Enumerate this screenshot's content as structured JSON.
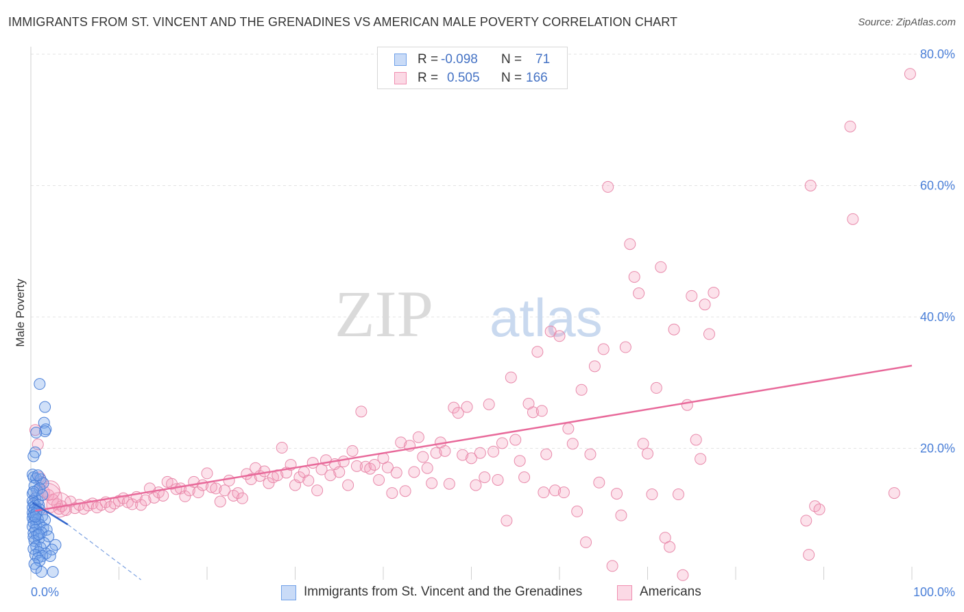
{
  "header": {
    "title": "IMMIGRANTS FROM ST. VINCENT AND THE GRENADINES VS AMERICAN MALE POVERTY CORRELATION CHART",
    "source": "Source: ZipAtlas.com"
  },
  "watermark": {
    "zip": "ZIP",
    "atlas": "atlas"
  },
  "legend_top": {
    "rows": [
      {
        "r_label": "R =",
        "r_value": "-0.098",
        "n_label": "N =",
        "n_value": "71",
        "color": "#6fa0e8"
      },
      {
        "r_label": "R =",
        "r_value": "0.505",
        "n_label": "N =",
        "n_value": "166",
        "color": "#f08db0"
      }
    ]
  },
  "legend_bottom": {
    "items": [
      {
        "label": "Immigrants from St. Vincent and the Grenadines",
        "color": "#6fa0e8"
      },
      {
        "label": "Americans",
        "color": "#f08db0"
      }
    ]
  },
  "colors": {
    "blue_fill": "rgba(120,165,235,0.35)",
    "blue_stroke": "#4a7fd8",
    "pink_fill": "rgba(245,160,190,0.30)",
    "pink_stroke": "#e889aa",
    "pink_line": "#e8699a",
    "blue_line": "#3366cc",
    "tick_label": "#4a7fd8"
  },
  "chart_data": {
    "type": "scatter",
    "title": "IMMIGRANTS FROM ST. VINCENT AND THE GRENADINES VS AMERICAN MALE POVERTY CORRELATION CHART",
    "xlabel": "",
    "ylabel": "Male Poverty",
    "xlim": [
      0,
      100
    ],
    "ylim": [
      0,
      80
    ],
    "x_tick_labels": [
      "0.0%",
      "100.0%"
    ],
    "y_ticks": [
      20,
      40,
      60,
      80
    ],
    "y_tick_labels": [
      "20.0%",
      "40.0%",
      "60.0%",
      "80.0%"
    ],
    "grid": true,
    "legend_placement": "top-center",
    "series": [
      {
        "name": "Immigrants from St. Vincent and the Grenadines",
        "r": -0.098,
        "n": 71,
        "trend": {
          "x": [
            0.2,
            4.2
          ],
          "y": [
            11.7,
            8.4
          ]
        },
        "trend_dashed": {
          "x": [
            4.2,
            12.5
          ],
          "y": [
            8.4,
            0
          ]
        },
        "points": [
          [
            1.0,
            29.8
          ],
          [
            1.6,
            26.3
          ],
          [
            1.5,
            23.9
          ],
          [
            1.7,
            22.9
          ],
          [
            1.6,
            22.6
          ],
          [
            0.6,
            22.4
          ],
          [
            0.5,
            19.4
          ],
          [
            0.3,
            18.8
          ],
          [
            0.2,
            16.0
          ],
          [
            0.3,
            15.6
          ],
          [
            0.6,
            15.4
          ],
          [
            1.1,
            15.3
          ],
          [
            1.4,
            14.7
          ],
          [
            0.4,
            14.3
          ],
          [
            0.7,
            13.6
          ],
          [
            1.0,
            13.9
          ],
          [
            0.2,
            13.1
          ],
          [
            0.5,
            12.4
          ],
          [
            0.8,
            12.0
          ],
          [
            0.2,
            12.0
          ],
          [
            0.3,
            11.6
          ],
          [
            0.5,
            11.3
          ],
          [
            0.9,
            11.4
          ],
          [
            0.2,
            11.0
          ],
          [
            0.4,
            10.7
          ],
          [
            0.7,
            10.6
          ],
          [
            1.0,
            10.7
          ],
          [
            0.2,
            10.2
          ],
          [
            0.3,
            9.8
          ],
          [
            0.6,
            10.1
          ],
          [
            1.3,
            9.7
          ],
          [
            0.2,
            9.4
          ],
          [
            0.5,
            9.1
          ],
          [
            0.8,
            9.2
          ],
          [
            1.6,
            9.1
          ],
          [
            0.3,
            8.7
          ],
          [
            0.6,
            8.4
          ],
          [
            1.0,
            8.4
          ],
          [
            0.2,
            8.1
          ],
          [
            1.4,
            7.9
          ],
          [
            0.5,
            7.6
          ],
          [
            1.8,
            7.6
          ],
          [
            0.3,
            7.1
          ],
          [
            1.2,
            7.2
          ],
          [
            0.7,
            6.8
          ],
          [
            0.3,
            6.5
          ],
          [
            0.9,
            6.2
          ],
          [
            2.0,
            6.6
          ],
          [
            0.4,
            5.9
          ],
          [
            1.5,
            5.6
          ],
          [
            2.8,
            5.3
          ],
          [
            0.6,
            5.1
          ],
          [
            1.1,
            4.9
          ],
          [
            0.3,
            4.7
          ],
          [
            2.4,
            4.6
          ],
          [
            0.9,
            4.2
          ],
          [
            1.7,
            4.0
          ],
          [
            0.5,
            3.8
          ],
          [
            1.3,
            3.6
          ],
          [
            0.8,
            3.3
          ],
          [
            2.2,
            3.6
          ],
          [
            1.0,
            2.9
          ],
          [
            0.4,
            2.4
          ],
          [
            0.6,
            1.8
          ],
          [
            1.2,
            1.2
          ],
          [
            2.5,
            1.2
          ],
          [
            0.3,
            13.4
          ],
          [
            0.8,
            15.9
          ],
          [
            1.3,
            12.9
          ],
          [
            0.5,
            9.6
          ],
          [
            0.9,
            6.9
          ]
        ]
      },
      {
        "name": "Americans",
        "r": 0.505,
        "n": 166,
        "trend": {
          "x": [
            0.5,
            100
          ],
          "y": [
            10.5,
            32.6
          ]
        },
        "points": [
          [
            0.5,
            22.8
          ],
          [
            0.8,
            20.6
          ],
          [
            1.0,
            15.6
          ],
          [
            1.2,
            14.9
          ],
          [
            1.5,
            13.4
          ],
          [
            2.0,
            12.9
          ],
          [
            2.5,
            12.2
          ],
          [
            3.0,
            11.5
          ],
          [
            3.2,
            10.8
          ],
          [
            3.5,
            11.2
          ],
          [
            4.0,
            10.6
          ],
          [
            4.5,
            11.9
          ],
          [
            5.0,
            10.9
          ],
          [
            5.5,
            11.4
          ],
          [
            6.0,
            10.8
          ],
          [
            6.5,
            11.3
          ],
          [
            7.0,
            11.6
          ],
          [
            7.5,
            11.0
          ],
          [
            8.0,
            11.4
          ],
          [
            8.5,
            11.8
          ],
          [
            9.0,
            11.1
          ],
          [
            9.5,
            11.6
          ],
          [
            10.0,
            12.0
          ],
          [
            10.5,
            12.4
          ],
          [
            11.0,
            11.8
          ],
          [
            11.5,
            11.5
          ],
          [
            12.0,
            12.6
          ],
          [
            12.5,
            11.4
          ],
          [
            13.0,
            12.1
          ],
          [
            13.5,
            13.9
          ],
          [
            14.0,
            12.5
          ],
          [
            14.5,
            13.3
          ],
          [
            15.0,
            12.8
          ],
          [
            15.5,
            14.9
          ],
          [
            16.0,
            14.6
          ],
          [
            16.5,
            13.8
          ],
          [
            17.0,
            13.9
          ],
          [
            17.5,
            12.7
          ],
          [
            18.0,
            13.6
          ],
          [
            18.5,
            14.9
          ],
          [
            19.0,
            13.3
          ],
          [
            19.5,
            14.4
          ],
          [
            20.0,
            16.2
          ],
          [
            20.5,
            14.1
          ],
          [
            21.0,
            13.9
          ],
          [
            21.5,
            11.9
          ],
          [
            22.0,
            13.6
          ],
          [
            22.5,
            15.1
          ],
          [
            23.0,
            12.8
          ],
          [
            23.5,
            13.2
          ],
          [
            24.0,
            12.4
          ],
          [
            24.5,
            16.1
          ],
          [
            25.0,
            15.3
          ],
          [
            25.5,
            17.0
          ],
          [
            26.0,
            15.8
          ],
          [
            26.5,
            16.5
          ],
          [
            27.0,
            14.7
          ],
          [
            27.5,
            15.6
          ],
          [
            28.0,
            15.9
          ],
          [
            28.5,
            20.1
          ],
          [
            29.0,
            16.3
          ],
          [
            29.5,
            17.5
          ],
          [
            30.0,
            14.4
          ],
          [
            30.5,
            15.6
          ],
          [
            31.0,
            16.4
          ],
          [
            31.5,
            15.1
          ],
          [
            32.0,
            17.8
          ],
          [
            32.5,
            13.6
          ],
          [
            33.0,
            16.8
          ],
          [
            33.5,
            18.2
          ],
          [
            34.0,
            15.9
          ],
          [
            34.5,
            17.6
          ],
          [
            35.0,
            16.4
          ],
          [
            35.5,
            18.0
          ],
          [
            36.0,
            14.4
          ],
          [
            36.5,
            19.6
          ],
          [
            37.0,
            17.3
          ],
          [
            37.5,
            25.6
          ],
          [
            38.0,
            17.2
          ],
          [
            38.5,
            16.9
          ],
          [
            39.0,
            17.5
          ],
          [
            39.5,
            15.2
          ],
          [
            40.0,
            18.5
          ],
          [
            40.5,
            17.1
          ],
          [
            41.0,
            13.2
          ],
          [
            41.5,
            16.3
          ],
          [
            42.0,
            20.9
          ],
          [
            42.5,
            13.5
          ],
          [
            43.0,
            20.4
          ],
          [
            43.5,
            16.4
          ],
          [
            44.0,
            21.7
          ],
          [
            44.5,
            18.7
          ],
          [
            45.0,
            17.0
          ],
          [
            45.5,
            14.7
          ],
          [
            46.0,
            19.3
          ],
          [
            46.5,
            20.9
          ],
          [
            47.0,
            19.6
          ],
          [
            47.5,
            14.6
          ],
          [
            48.0,
            26.2
          ],
          [
            48.5,
            25.4
          ],
          [
            49.0,
            19.0
          ],
          [
            49.5,
            26.3
          ],
          [
            50.0,
            18.5
          ],
          [
            50.5,
            14.4
          ],
          [
            51.0,
            19.3
          ],
          [
            51.5,
            15.6
          ],
          [
            52.0,
            26.7
          ],
          [
            52.5,
            19.5
          ],
          [
            53.0,
            15.2
          ],
          [
            53.5,
            20.8
          ],
          [
            54.0,
            9.0
          ],
          [
            54.5,
            30.8
          ],
          [
            55.0,
            21.3
          ],
          [
            55.5,
            18.1
          ],
          [
            56.0,
            15.6
          ],
          [
            56.5,
            26.8
          ],
          [
            57.0,
            25.5
          ],
          [
            57.5,
            34.7
          ],
          [
            58.0,
            25.7
          ],
          [
            58.5,
            19.1
          ],
          [
            59.0,
            37.8
          ],
          [
            59.5,
            13.6
          ],
          [
            60.0,
            37.1
          ],
          [
            60.5,
            13.3
          ],
          [
            61.0,
            23.0
          ],
          [
            61.5,
            20.7
          ],
          [
            62.0,
            10.4
          ],
          [
            62.5,
            28.9
          ],
          [
            63.0,
            5.7
          ],
          [
            63.5,
            19.1
          ],
          [
            64.0,
            32.5
          ],
          [
            64.5,
            14.8
          ],
          [
            65.0,
            35.1
          ],
          [
            65.5,
            59.8
          ],
          [
            66.0,
            2.1
          ],
          [
            66.5,
            13.1
          ],
          [
            67.0,
            9.8
          ],
          [
            67.5,
            35.4
          ],
          [
            68.0,
            51.1
          ],
          [
            68.5,
            46.1
          ],
          [
            69.0,
            43.6
          ],
          [
            69.5,
            20.7
          ],
          [
            70.0,
            19.2
          ],
          [
            70.5,
            13.0
          ],
          [
            71.0,
            29.2
          ],
          [
            71.5,
            47.6
          ],
          [
            72.0,
            6.4
          ],
          [
            72.5,
            5.0
          ],
          [
            73.0,
            38.1
          ],
          [
            73.5,
            13.0
          ],
          [
            74.0,
            0.7
          ],
          [
            74.5,
            26.6
          ],
          [
            75.0,
            43.2
          ],
          [
            75.5,
            21.3
          ],
          [
            76.0,
            18.4
          ],
          [
            76.5,
            41.9
          ],
          [
            77.0,
            37.4
          ],
          [
            77.5,
            43.7
          ],
          [
            88.5,
            60.0
          ],
          [
            88.0,
            9.0
          ],
          [
            88.3,
            3.8
          ],
          [
            89.0,
            11.2
          ],
          [
            89.5,
            10.7
          ],
          [
            93.0,
            69.0
          ],
          [
            93.3,
            54.9
          ],
          [
            98.0,
            13.2
          ],
          [
            99.8,
            77.0
          ],
          [
            58.2,
            13.3
          ]
        ]
      }
    ]
  }
}
